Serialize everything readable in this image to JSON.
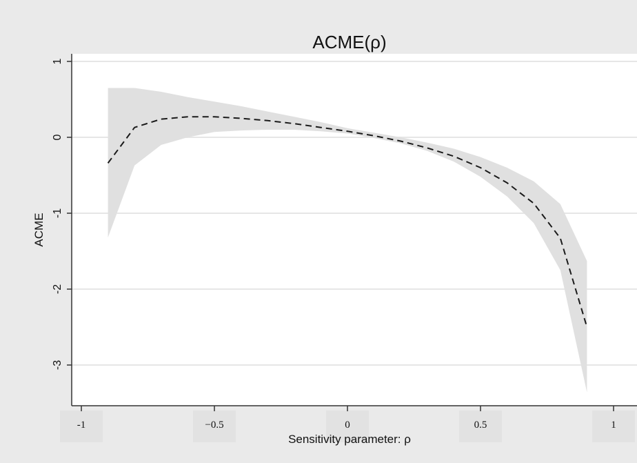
{
  "chart_data": {
    "type": "line",
    "title": "ACME(ρ)",
    "xlabel": "Sensitivity parameter: ρ",
    "ylabel": "ACME",
    "xlim": [
      -1,
      1
    ],
    "ylim": [
      -3.5,
      1.1
    ],
    "xticks": [
      -1,
      -0.5,
      0,
      0.5,
      1
    ],
    "xtick_labels": [
      "-1",
      "−0.5",
      "0",
      "0.5",
      "1"
    ],
    "yticks": [
      -3,
      -2,
      -1,
      0,
      1
    ],
    "ytick_labels": [
      "-3",
      "-2",
      "-1",
      "0",
      "1"
    ],
    "grid": true,
    "series": [
      {
        "style": "dashed",
        "x": [
          -0.9,
          -0.8,
          -0.7,
          -0.6,
          -0.5,
          -0.4,
          -0.3,
          -0.2,
          -0.1,
          0.0,
          0.1,
          0.2,
          0.3,
          0.4,
          0.5,
          0.6,
          0.7,
          0.8,
          0.9
        ],
        "y": [
          -0.34,
          0.13,
          0.24,
          0.27,
          0.27,
          0.25,
          0.22,
          0.18,
          0.13,
          0.08,
          0.02,
          -0.05,
          -0.14,
          -0.25,
          -0.4,
          -0.6,
          -0.87,
          -1.33,
          -2.5
        ],
        "ci_lower": [
          -1.32,
          -0.37,
          -0.1,
          0.0,
          0.07,
          0.09,
          0.1,
          0.1,
          0.08,
          0.05,
          -0.01,
          -0.08,
          -0.18,
          -0.32,
          -0.52,
          -0.78,
          -1.13,
          -1.75,
          -3.36
        ],
        "ci_upper": [
          0.65,
          0.65,
          0.6,
          0.53,
          0.47,
          0.41,
          0.34,
          0.27,
          0.2,
          0.12,
          0.06,
          0.0,
          -0.07,
          -0.15,
          -0.26,
          -0.4,
          -0.58,
          -0.88,
          -1.63
        ]
      }
    ]
  },
  "colors": {
    "background": "#eaeaea",
    "plot_background": "#ffffff",
    "band": "#e0e0e0",
    "line": "#1a1a1a",
    "grid": "#e6e6e6",
    "x_tick_patch": "#e2e2e2"
  }
}
